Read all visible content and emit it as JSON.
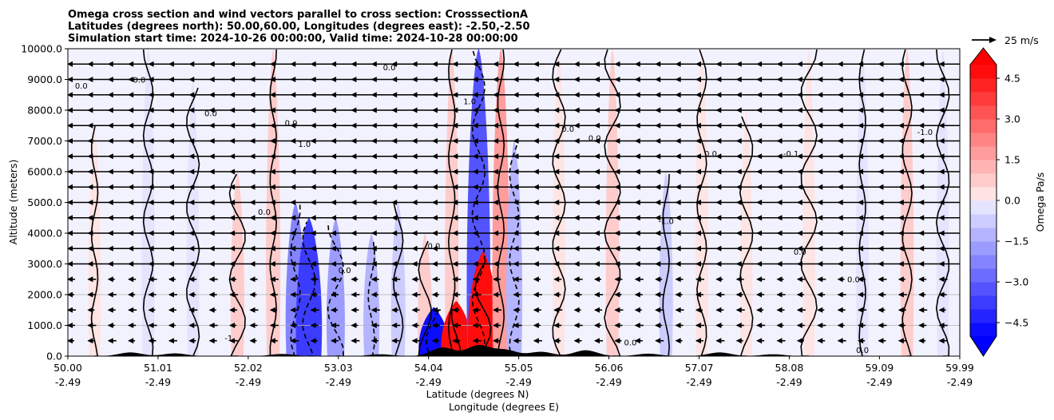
{
  "chart_data": {
    "type": "heatmap",
    "title_lines": [
      "Omega cross section and wind vectors parallel to cross section: CrosssectionA",
      "Latitudes (degrees north): 50.00,60.00, Longitudes (degrees east): -2.50,-2.50",
      "Simulation start time: 2024-10-26 00:00:00, Valid time: 2024-10-28 00:00:00"
    ],
    "xlabel": "Latitude (degrees N)",
    "xlabel2": "Longitude (degrees E)",
    "ylabel": "Altitude (meters)",
    "xlim": [
      50.0,
      59.99
    ],
    "ylim": [
      0,
      10000
    ],
    "x_ticks": [
      {
        "lat": 50.0,
        "lat_label": "50.00",
        "lon_label": "-2.49"
      },
      {
        "lat": 51.01,
        "lat_label": "51.01",
        "lon_label": "-2.49"
      },
      {
        "lat": 52.02,
        "lat_label": "52.02",
        "lon_label": "-2.49"
      },
      {
        "lat": 53.03,
        "lat_label": "53.03",
        "lon_label": "-2.49"
      },
      {
        "lat": 54.04,
        "lat_label": "54.04",
        "lon_label": "-2.49"
      },
      {
        "lat": 55.05,
        "lat_label": "55.05",
        "lon_label": "-2.49"
      },
      {
        "lat": 56.06,
        "lat_label": "56.06",
        "lon_label": "-2.49"
      },
      {
        "lat": 57.07,
        "lat_label": "57.07",
        "lon_label": "-2.49"
      },
      {
        "lat": 58.08,
        "lat_label": "58.08",
        "lon_label": "-2.49"
      },
      {
        "lat": 59.09,
        "lat_label": "59.09",
        "lon_label": "-2.49"
      },
      {
        "lat": 59.99,
        "lat_label": "59.99",
        "lon_label": "-2.49"
      }
    ],
    "y_ticks": [
      {
        "value": 0,
        "label": "0.0"
      },
      {
        "value": 1000,
        "label": "1000.0"
      },
      {
        "value": 2000,
        "label": "2000.0"
      },
      {
        "value": 3000,
        "label": "3000.0"
      },
      {
        "value": 4000,
        "label": "4000.0"
      },
      {
        "value": 5000,
        "label": "5000.0"
      },
      {
        "value": 6000,
        "label": "6000.0"
      },
      {
        "value": 7000,
        "label": "7000.0"
      },
      {
        "value": 8000,
        "label": "8000.0"
      },
      {
        "value": 9000,
        "label": "9000.0"
      },
      {
        "value": 10000,
        "label": "10000.0"
      }
    ],
    "grid": "horizontal",
    "colorbar": {
      "label": "Omega Pa/s",
      "vmin": -5.0,
      "vmax": 5.0,
      "extend": "both",
      "colormap": "bwr",
      "tick_values": [
        -4.5,
        -3.0,
        -1.5,
        0.0,
        1.5,
        3.0,
        4.5
      ],
      "tick_labels": [
        "−4.5",
        "−3.0",
        "−1.5",
        "0.0",
        "1.5",
        "3.0",
        "4.5"
      ]
    },
    "quiver_key": {
      "label": "25 m/s",
      "speed": 25
    },
    "wind_vectors": {
      "direction": "negative-x (northerly, toward lower latitude)",
      "typical_speed": 25
    },
    "omega_bands": [
      {
        "lat": 50.3,
        "z_top": 7500,
        "omega": 0.3
      },
      {
        "lat": 50.9,
        "z_top": 10000,
        "omega": -0.4
      },
      {
        "lat": 51.4,
        "z_top": 9000,
        "omega": -0.3
      },
      {
        "lat": 51.9,
        "z_top": 6000,
        "omega": 0.6
      },
      {
        "lat": 52.3,
        "z_top": 10000,
        "omega": 0.8
      },
      {
        "lat": 52.55,
        "z_top": 5000,
        "omega": -2.2
      },
      {
        "lat": 52.7,
        "z_top": 4500,
        "omega": -3.8
      },
      {
        "lat": 53.0,
        "z_top": 4500,
        "omega": -1.8
      },
      {
        "lat": 53.4,
        "z_top": 4000,
        "omega": -1.2
      },
      {
        "lat": 53.7,
        "z_top": 5000,
        "omega": -0.8
      },
      {
        "lat": 54.0,
        "z_top": 4000,
        "omega": 0.8
      },
      {
        "lat": 54.1,
        "z_top": 1600,
        "omega": -4.9
      },
      {
        "lat": 54.3,
        "z_top": 10000,
        "omega": 0.6
      },
      {
        "lat": 54.35,
        "z_top": 1800,
        "omega": 4.9
      },
      {
        "lat": 54.6,
        "z_top": 10000,
        "omega": -3.2
      },
      {
        "lat": 54.65,
        "z_top": 3400,
        "omega": 4.9
      },
      {
        "lat": 54.85,
        "z_top": 10000,
        "omega": 1.5
      },
      {
        "lat": 55.0,
        "z_top": 7000,
        "omega": -1.2
      },
      {
        "lat": 55.5,
        "z_top": 10000,
        "omega": 0.3
      },
      {
        "lat": 56.1,
        "z_top": 10000,
        "omega": 0.5
      },
      {
        "lat": 56.7,
        "z_top": 6000,
        "omega": -0.6
      },
      {
        "lat": 57.1,
        "z_top": 10000,
        "omega": 0.4
      },
      {
        "lat": 57.6,
        "z_top": 8000,
        "omega": 0.2
      },
      {
        "lat": 58.3,
        "z_top": 10000,
        "omega": 0.2
      },
      {
        "lat": 58.9,
        "z_top": 10000,
        "omega": -0.3
      },
      {
        "lat": 59.4,
        "z_top": 10000,
        "omega": 0.5
      },
      {
        "lat": 59.8,
        "z_top": 10000,
        "omega": -0.3
      }
    ],
    "contour_labels": [
      {
        "lat": 50.15,
        "z": 8700,
        "text": "0.0"
      },
      {
        "lat": 50.8,
        "z": 8900,
        "text": "0.0"
      },
      {
        "lat": 51.6,
        "z": 7800,
        "text": "0.0"
      },
      {
        "lat": 52.2,
        "z": 4600,
        "text": "0.0"
      },
      {
        "lat": 52.5,
        "z": 7500,
        "text": "0.0"
      },
      {
        "lat": 52.65,
        "z": 6800,
        "text": "1.0"
      },
      {
        "lat": 53.1,
        "z": 2700,
        "text": "0.0"
      },
      {
        "lat": 53.6,
        "z": 9300,
        "text": "0.0"
      },
      {
        "lat": 54.1,
        "z": 3500,
        "text": "0.0"
      },
      {
        "lat": 54.5,
        "z": 8200,
        "text": "1.0"
      },
      {
        "lat": 55.6,
        "z": 7300,
        "text": "0.0"
      },
      {
        "lat": 55.9,
        "z": 7000,
        "text": "0.0"
      },
      {
        "lat": 56.7,
        "z": 4300,
        "text": "-1.0"
      },
      {
        "lat": 57.2,
        "z": 6500,
        "text": "0.0"
      },
      {
        "lat": 58.1,
        "z": 6500,
        "text": "-0.1"
      },
      {
        "lat": 58.2,
        "z": 3300,
        "text": "0.0"
      },
      {
        "lat": 58.8,
        "z": 2400,
        "text": "0.0"
      },
      {
        "lat": 59.6,
        "z": 7200,
        "text": "-1.0"
      },
      {
        "lat": 56.3,
        "z": 350,
        "text": "0.0"
      },
      {
        "lat": 58.9,
        "z": 100,
        "text": "0.0"
      },
      {
        "lat": 51.8,
        "z": 500,
        "text": "-1"
      }
    ]
  }
}
